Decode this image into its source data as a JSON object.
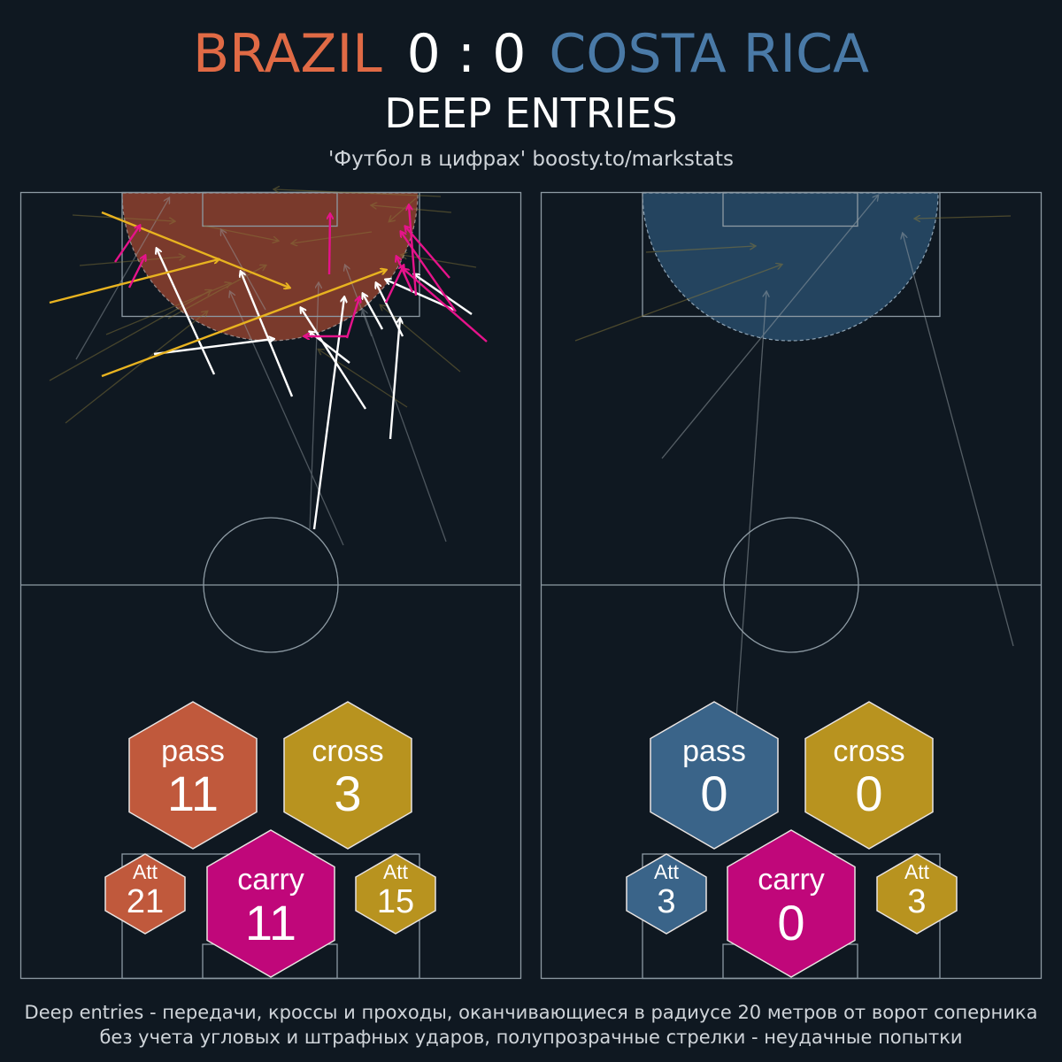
{
  "header": {
    "home_team": "BRAZIL",
    "score": "0 : 0",
    "away_team": "COSTA RICA",
    "subtitle": "DEEP ENTRIES",
    "credit": "'Футбол в цифрах' boosty.to/markstats"
  },
  "colors": {
    "background": "#0f1821",
    "home": "#c0593c",
    "away": "#3a6489",
    "cross": "#b8931f",
    "carry": "#c0077a",
    "pass_arrow": "#ffffff",
    "cross_arrow": "#e8b320",
    "carry_arrow": "#e6138b",
    "line": "#8d9aa3"
  },
  "home_panel": {
    "pass": {
      "label": "pass",
      "value": "11"
    },
    "cross": {
      "label": "cross",
      "value": "3"
    },
    "carry": {
      "label": "carry",
      "value": "11"
    },
    "att_left": {
      "label": "Att",
      "value": "21"
    },
    "att_right": {
      "label": "Att",
      "value": "15"
    }
  },
  "away_panel": {
    "pass": {
      "label": "pass",
      "value": "0"
    },
    "cross": {
      "label": "cross",
      "value": "0"
    },
    "carry": {
      "label": "carry",
      "value": "0"
    },
    "att_left": {
      "label": "Att",
      "value": "3"
    },
    "att_right": {
      "label": "Att",
      "value": "3"
    }
  },
  "footer": {
    "line1": "Deep entries - передачи, кроссы и проходы, оканчивающиеся в радиусе 20 метров от ворот соперника",
    "line2": "без учета угловых и штрафных ударов, полупрозрачные стрелки - неудачные попытки"
  }
}
